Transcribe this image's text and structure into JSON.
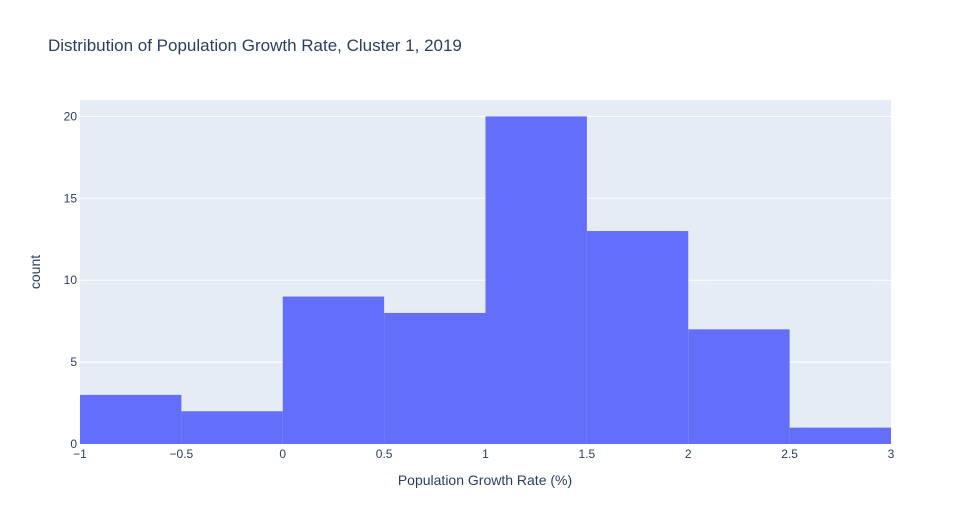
{
  "chart_data": {
    "type": "histogram",
    "title": "Distribution of Population Growth Rate, Cluster 1, 2019",
    "xlabel": "Population Growth Rate (%)",
    "ylabel": "count",
    "xlim": [
      -1,
      3
    ],
    "ylim": [
      0,
      21
    ],
    "x_ticks": [
      -1,
      -0.5,
      0,
      0.5,
      1,
      1.5,
      2,
      2.5,
      3
    ],
    "x_tick_labels": [
      "−1",
      "−0.5",
      "0",
      "0.5",
      "1",
      "1.5",
      "2",
      "2.5",
      "3"
    ],
    "y_ticks": [
      0,
      5,
      10,
      15,
      20
    ],
    "y_tick_labels": [
      "0",
      "5",
      "10",
      "15",
      "20"
    ],
    "bins": [
      {
        "start": -1,
        "end": -0.5,
        "count": 3
      },
      {
        "start": -0.5,
        "end": 0,
        "count": 2
      },
      {
        "start": 0,
        "end": 0.5,
        "count": 9
      },
      {
        "start": 0.5,
        "end": 1,
        "count": 8
      },
      {
        "start": 1,
        "end": 1.5,
        "count": 20
      },
      {
        "start": 1.5,
        "end": 2,
        "count": 13
      },
      {
        "start": 2,
        "end": 2.5,
        "count": 7
      },
      {
        "start": 2.5,
        "end": 3,
        "count": 1
      }
    ],
    "bar_color": "#636efa",
    "plot_bg": "#e5ecf6",
    "grid": true,
    "legend": "none"
  }
}
